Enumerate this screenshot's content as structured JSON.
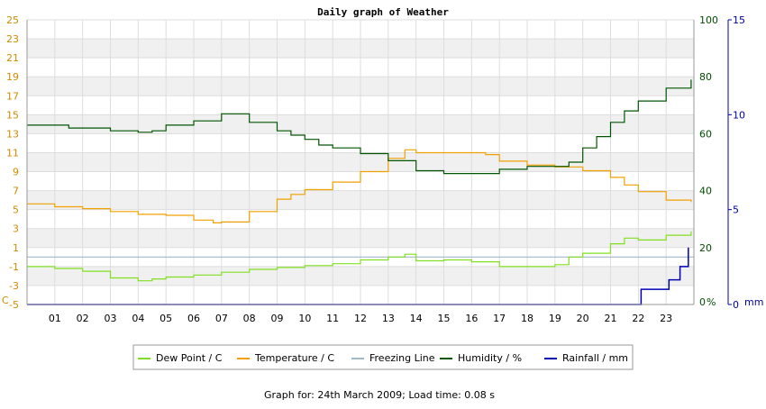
{
  "chart_data": {
    "type": "line",
    "title": "Daily graph of Weather",
    "left_axis": {
      "unit_label": "C",
      "min": -5,
      "max": 25,
      "ticks": [
        -5,
        -3,
        -1,
        1,
        3,
        5,
        7,
        9,
        11,
        13,
        15,
        17,
        19,
        21,
        23,
        25
      ],
      "color": "#d08a00"
    },
    "right_axis_humidity": {
      "unit_label": "%",
      "min": 0,
      "max": 100,
      "ticks": [
        0,
        20,
        40,
        60,
        80,
        100
      ],
      "color": "#004d00"
    },
    "right_axis_rain": {
      "unit_label": "mm",
      "min": 0,
      "max": 15,
      "ticks": [
        0,
        5,
        10,
        15
      ],
      "color": "#0000a0"
    },
    "x_axis": {
      "min": 0,
      "max": 24,
      "ticks": [
        "01",
        "02",
        "03",
        "04",
        "05",
        "06",
        "07",
        "08",
        "09",
        "10",
        "11",
        "12",
        "13",
        "14",
        "15",
        "16",
        "17",
        "18",
        "19",
        "20",
        "21",
        "22",
        "23"
      ]
    },
    "grid": true,
    "legend_position": "bottom",
    "series": [
      {
        "name": "Dew Point / C",
        "color": "#80e020",
        "axis": "left",
        "points": [
          [
            0,
            -1
          ],
          [
            1,
            -1.2
          ],
          [
            2,
            -1.5
          ],
          [
            3,
            -2.2
          ],
          [
            4,
            -2.5
          ],
          [
            4.5,
            -2.3
          ],
          [
            5,
            -2.1
          ],
          [
            6,
            -1.9
          ],
          [
            7,
            -1.6
          ],
          [
            8,
            -1.3
          ],
          [
            9,
            -1.1
          ],
          [
            10,
            -0.9
          ],
          [
            11,
            -0.7
          ],
          [
            12,
            -0.3
          ],
          [
            13,
            0
          ],
          [
            13.6,
            0.3
          ],
          [
            14,
            -0.4
          ],
          [
            15,
            -0.3
          ],
          [
            16,
            -0.5
          ],
          [
            17,
            -1
          ],
          [
            18,
            -1
          ],
          [
            19,
            -0.8
          ],
          [
            19.5,
            0
          ],
          [
            20,
            0.4
          ],
          [
            21,
            1.4
          ],
          [
            21.5,
            2
          ],
          [
            22,
            1.8
          ],
          [
            23,
            2.3
          ],
          [
            23.9,
            2.7
          ]
        ]
      },
      {
        "name": "Temperature / C",
        "color": "#f0a000",
        "axis": "left",
        "points": [
          [
            0,
            5.6
          ],
          [
            1,
            5.3
          ],
          [
            2,
            5.1
          ],
          [
            3,
            4.8
          ],
          [
            4,
            4.5
          ],
          [
            5,
            4.4
          ],
          [
            6,
            3.9
          ],
          [
            6.7,
            3.6
          ],
          [
            7,
            3.7
          ],
          [
            8,
            4.8
          ],
          [
            9,
            6.1
          ],
          [
            9.5,
            6.6
          ],
          [
            10,
            7.1
          ],
          [
            11,
            7.9
          ],
          [
            12,
            9
          ],
          [
            13,
            10.4
          ],
          [
            13.6,
            11.3
          ],
          [
            14,
            11
          ],
          [
            15,
            11
          ],
          [
            16,
            11
          ],
          [
            16.5,
            10.8
          ],
          [
            17,
            10.1
          ],
          [
            18,
            9.7
          ],
          [
            19,
            9.5
          ],
          [
            20,
            9.1
          ],
          [
            21,
            8.4
          ],
          [
            21.5,
            7.6
          ],
          [
            22,
            6.9
          ],
          [
            23,
            6
          ],
          [
            23.9,
            5.8
          ]
        ]
      },
      {
        "name": "Freezing Line",
        "color": "#9fb8cc",
        "axis": "left",
        "points": [
          [
            0,
            0
          ],
          [
            24,
            0
          ]
        ]
      },
      {
        "name": "Humidity / %",
        "color": "#005500",
        "axis": "right_humidity",
        "points": [
          [
            0,
            63
          ],
          [
            1,
            63
          ],
          [
            1.5,
            62
          ],
          [
            3,
            61
          ],
          [
            4,
            60.5
          ],
          [
            4.5,
            61
          ],
          [
            5,
            63
          ],
          [
            6,
            64.5
          ],
          [
            7,
            67
          ],
          [
            8,
            64
          ],
          [
            9,
            61
          ],
          [
            9.5,
            59.5
          ],
          [
            10,
            58
          ],
          [
            10.5,
            56
          ],
          [
            11,
            55
          ],
          [
            12,
            53
          ],
          [
            13,
            50.5
          ],
          [
            14,
            47
          ],
          [
            15,
            46
          ],
          [
            16,
            46
          ],
          [
            17,
            47.5
          ],
          [
            18,
            48.5
          ],
          [
            19,
            48.5
          ],
          [
            19.5,
            50
          ],
          [
            20,
            55
          ],
          [
            20.5,
            59
          ],
          [
            21,
            64
          ],
          [
            21.5,
            68
          ],
          [
            22,
            71.5
          ],
          [
            23,
            76
          ],
          [
            23.9,
            79
          ]
        ]
      },
      {
        "name": "Rainfall / mm",
        "color": "#0000b0",
        "axis": "right_rain",
        "points": [
          [
            0,
            0
          ],
          [
            22.1,
            0
          ],
          [
            22.1,
            0.8
          ],
          [
            22.9,
            0.8
          ],
          [
            23.1,
            1.3
          ],
          [
            23.5,
            2
          ],
          [
            23.8,
            3
          ]
        ]
      }
    ]
  },
  "footer": "Graph for: 24th March 2009; Load time: 0.08 s"
}
